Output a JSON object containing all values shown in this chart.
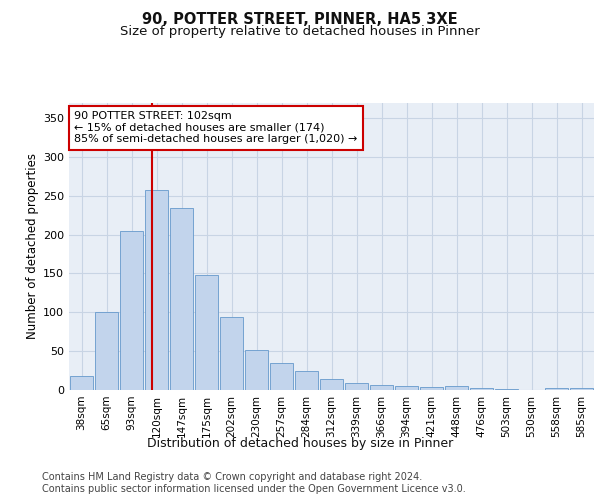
{
  "title_line1": "90, POTTER STREET, PINNER, HA5 3XE",
  "title_line2": "Size of property relative to detached houses in Pinner",
  "xlabel": "Distribution of detached houses by size in Pinner",
  "ylabel": "Number of detached properties",
  "bar_labels": [
    "38sqm",
    "65sqm",
    "93sqm",
    "120sqm",
    "147sqm",
    "175sqm",
    "202sqm",
    "230sqm",
    "257sqm",
    "284sqm",
    "312sqm",
    "339sqm",
    "366sqm",
    "394sqm",
    "421sqm",
    "448sqm",
    "476sqm",
    "503sqm",
    "530sqm",
    "558sqm",
    "585sqm"
  ],
  "bar_values": [
    18,
    100,
    204,
    257,
    234,
    148,
    94,
    52,
    35,
    25,
    14,
    9,
    7,
    5,
    4,
    5,
    3,
    1,
    0,
    3,
    2
  ],
  "bar_color": "#c2d4ec",
  "bar_edge_color": "#6699cc",
  "grid_color": "#c8d4e4",
  "background_color": "#e8eef6",
  "annotation_line1": "90 POTTER STREET: 102sqm",
  "annotation_line2": "← 15% of detached houses are smaller (174)",
  "annotation_line3": "85% of semi-detached houses are larger (1,020) →",
  "annotation_box_facecolor": "#ffffff",
  "annotation_border_color": "#cc0000",
  "vline_color": "#cc0000",
  "vline_x": 2.82,
  "ylim_max": 370,
  "yticks": [
    0,
    50,
    100,
    150,
    200,
    250,
    300,
    350
  ],
  "footer_text1": "Contains HM Land Registry data © Crown copyright and database right 2024.",
  "footer_text2": "Contains public sector information licensed under the Open Government Licence v3.0.",
  "title_fontsize": 10.5,
  "subtitle_fontsize": 9.5,
  "annotation_fontsize": 8,
  "axis_label_fontsize": 9,
  "ylabel_fontsize": 8.5,
  "tick_fontsize": 7.5,
  "footer_fontsize": 7
}
